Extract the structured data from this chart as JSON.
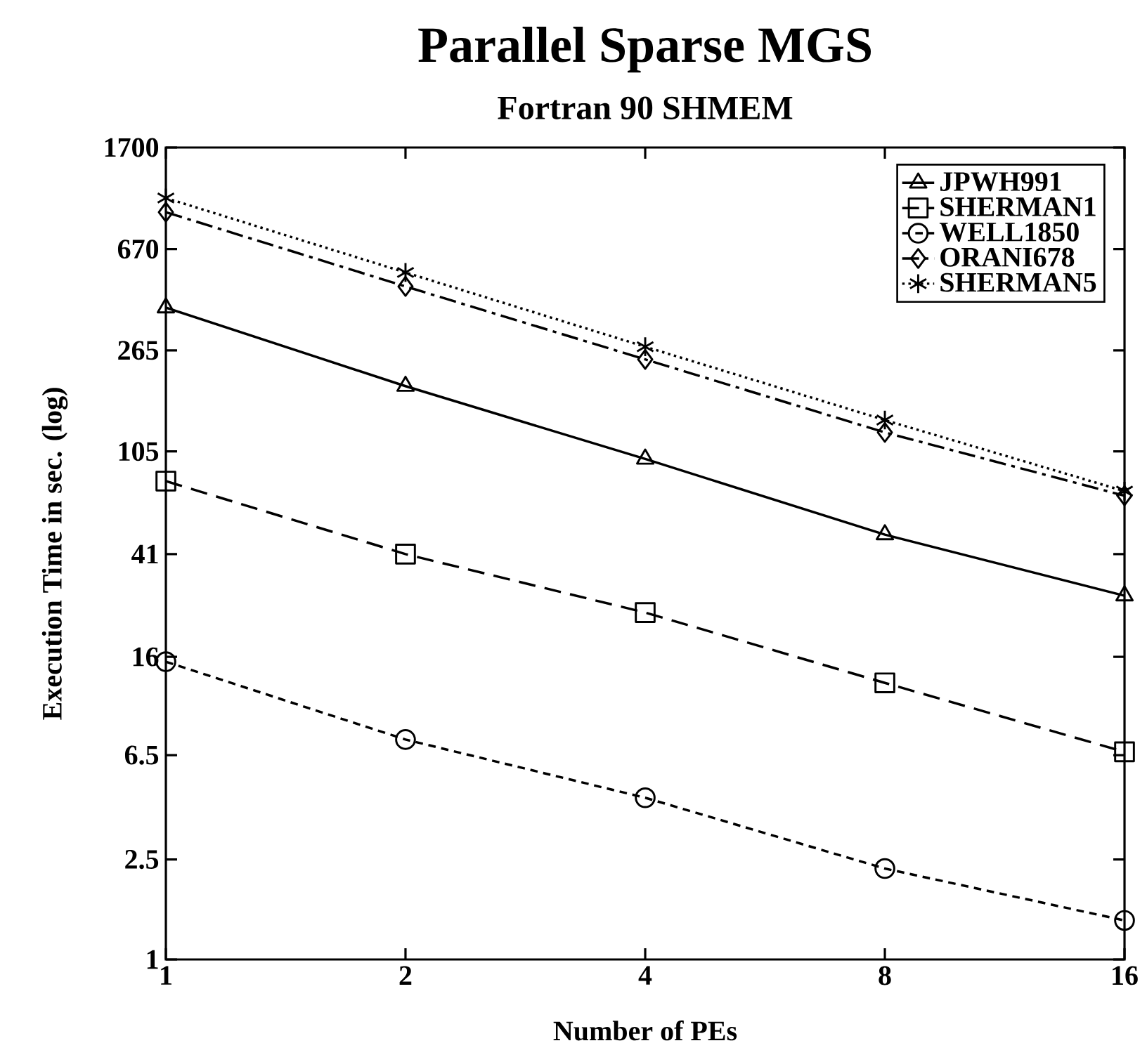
{
  "chart_data": {
    "type": "line",
    "title": "Parallel Sparse MGS",
    "subtitle": "Fortran 90   SHMEM",
    "xlabel": "Number of PEs",
    "ylabel": "Execution Time in sec. (log)",
    "x": [
      1,
      2,
      4,
      8,
      16
    ],
    "log": "xy",
    "xlim": [
      1,
      16
    ],
    "xticks": [
      1,
      2,
      4,
      8,
      16
    ],
    "ylim": [
      1,
      1700
    ],
    "yticks": [
      1,
      2.5,
      6.5,
      16,
      41,
      105,
      265,
      670,
      1700
    ],
    "grid": false,
    "legend": "top right",
    "series": [
      {
        "name": "JPWH991",
        "color": "#000000",
        "marker": "triangle",
        "line_style": "solid",
        "values": [
          392,
          191,
          98,
          49,
          28
        ]
      },
      {
        "name": "SHERMAN1",
        "color": "#000000",
        "marker": "square",
        "line_style": "dashed",
        "values": [
          80,
          41,
          24,
          12.6,
          6.7
        ]
      },
      {
        "name": "WELL1850",
        "color": "#000000",
        "marker": "circle",
        "line_style": "dashed",
        "values": [
          15.3,
          7.5,
          4.4,
          2.3,
          1.43
        ]
      },
      {
        "name": "ORANI678",
        "color": "#000000",
        "marker": "diamond",
        "line_style": "dashdot",
        "values": [
          940,
          476,
          244,
          125,
          70
        ]
      },
      {
        "name": "SHERMAN5",
        "color": "#000000",
        "marker": "cross",
        "line_style": "dotted",
        "values": [
          1070,
          541,
          274,
          140,
          73
        ]
      }
    ]
  }
}
